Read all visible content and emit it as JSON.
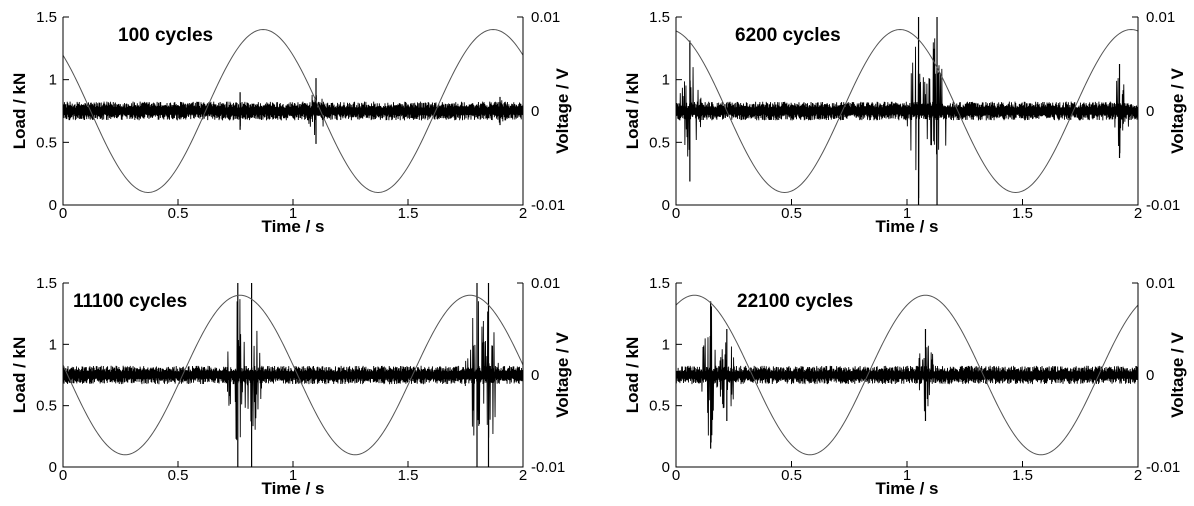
{
  "chart_data": [
    {
      "type": "line",
      "title": "100 cycles",
      "xlabel": "Time / s",
      "ylabel": "Load / kN",
      "y2label": "Voltage / V",
      "xlim": [
        0,
        2
      ],
      "ylim": [
        0,
        1.5
      ],
      "y2lim": [
        -0.01,
        0.01
      ],
      "x_ticks": [
        "0",
        "0.5",
        "1",
        "1.5",
        "2"
      ],
      "y_ticks": [
        "0",
        "0.5",
        "1",
        "1.5"
      ],
      "y2_ticks": [
        "-0.01",
        "0",
        "0.01"
      ],
      "series": [
        {
          "axis": "left",
          "wave": "sine",
          "min": 0.1,
          "max": 1.4,
          "frequency_hz": 1,
          "peak_times": [
            0.87,
            1.86
          ]
        },
        {
          "axis": "right",
          "wave": "noise",
          "baseline": 0,
          "noise_amplitude": 0.001,
          "bursts": [
            {
              "t": 0.77,
              "amp": 0.002
            },
            {
              "t": 1.1,
              "amp": 0.0035
            },
            {
              "t": 1.9,
              "amp": 0.0015
            }
          ]
        }
      ]
    },
    {
      "type": "line",
      "title": "6200 cycles",
      "xlabel": "Time / s",
      "ylabel": "Load / kN",
      "y2label": "Voltage / V",
      "xlim": [
        0,
        2
      ],
      "ylim": [
        0,
        1.5
      ],
      "y2lim": [
        -0.01,
        0.01
      ],
      "x_ticks": [
        "0",
        "0.5",
        "1",
        "1.5",
        "2"
      ],
      "y_ticks": [
        "0",
        "0.5",
        "1",
        "1.5"
      ],
      "y2_ticks": [
        "-0.01",
        "0",
        "0.01"
      ],
      "series": [
        {
          "axis": "left",
          "wave": "sine",
          "min": 0.1,
          "max": 1.4,
          "frequency_hz": 1,
          "peak_times": [
            -0.03,
            0.97,
            1.97
          ]
        },
        {
          "axis": "right",
          "wave": "noise",
          "baseline": 0,
          "noise_amplitude": 0.001,
          "bursts": [
            {
              "t": 0.06,
              "amp": 0.0075
            },
            {
              "t": 1.05,
              "amp": 0.01
            },
            {
              "t": 1.13,
              "amp": 0.01
            },
            {
              "t": 1.92,
              "amp": 0.005
            }
          ]
        }
      ]
    },
    {
      "type": "line",
      "title": "11100 cycles",
      "xlabel": "Time / s",
      "ylabel": "Load / kN",
      "y2label": "Voltage / V",
      "xlim": [
        0,
        2
      ],
      "ylim": [
        0,
        1.5
      ],
      "y2lim": [
        -0.01,
        0.01
      ],
      "x_ticks": [
        "0",
        "0.5",
        "1",
        "1.5",
        "2"
      ],
      "y_ticks": [
        "0",
        "0.5",
        "1",
        "1.5"
      ],
      "y2_ticks": [
        "-0.01",
        "0",
        "0.01"
      ],
      "series": [
        {
          "axis": "left",
          "wave": "sine",
          "min": 0.1,
          "max": 1.4,
          "frequency_hz": 1,
          "peak_times": [
            0.77,
            1.77
          ]
        },
        {
          "axis": "right",
          "wave": "noise",
          "baseline": 0,
          "noise_amplitude": 0.001,
          "bursts": [
            {
              "t": 0.76,
              "amp": 0.01
            },
            {
              "t": 0.82,
              "amp": 0.01
            },
            {
              "t": 1.8,
              "amp": 0.01
            },
            {
              "t": 1.85,
              "amp": 0.01
            }
          ]
        }
      ]
    },
    {
      "type": "line",
      "title": "22100 cycles",
      "xlabel": "Time / s",
      "ylabel": "Load / kN",
      "y2label": "Voltage / V",
      "xlim": [
        0,
        2
      ],
      "ylim": [
        0,
        1.5
      ],
      "y2lim": [
        -0.01,
        0.01
      ],
      "x_ticks": [
        "0",
        "0.5",
        "1",
        "1.5",
        "2"
      ],
      "y_ticks": [
        "0",
        "0.5",
        "1",
        "1.5"
      ],
      "y2_ticks": [
        "-0.01",
        "0",
        "0.01"
      ],
      "series": [
        {
          "axis": "left",
          "wave": "sine",
          "min": 0.1,
          "max": 1.4,
          "frequency_hz": 1,
          "peak_times": [
            0.08,
            1.08,
            2.08
          ]
        },
        {
          "axis": "right",
          "wave": "noise",
          "baseline": 0,
          "noise_amplitude": 0.001,
          "bursts": [
            {
              "t": 0.15,
              "amp": 0.008
            },
            {
              "t": 0.22,
              "amp": 0.005
            },
            {
              "t": 1.08,
              "amp": 0.005
            }
          ]
        }
      ]
    }
  ]
}
